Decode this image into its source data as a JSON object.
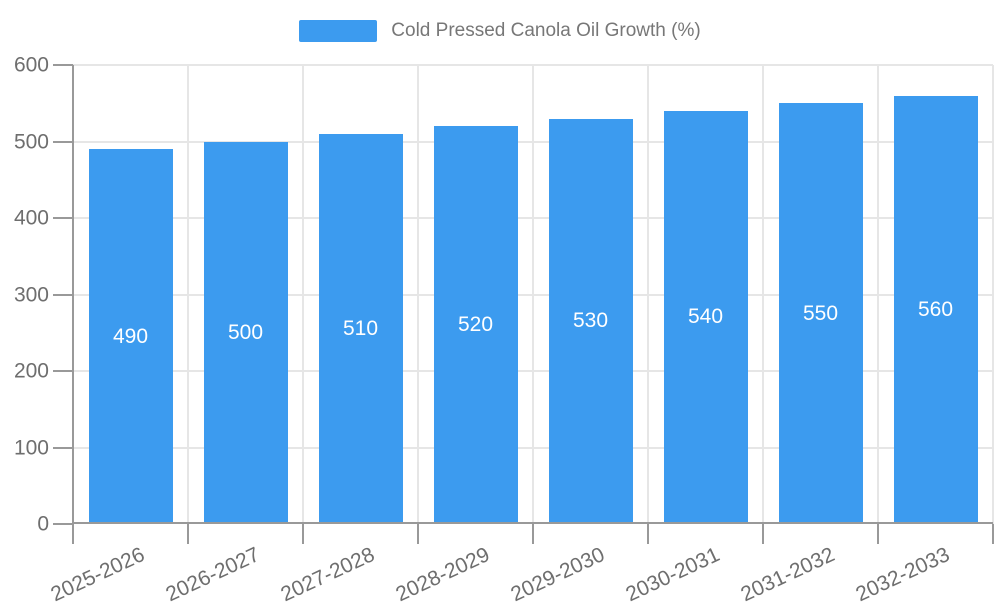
{
  "legend": {
    "label": "Cold Pressed Canola Oil Growth (%)"
  },
  "chart_data": {
    "type": "bar",
    "title": "",
    "xlabel": "",
    "ylabel": "",
    "categories": [
      "2025-2026",
      "2026-2027",
      "2027-2028",
      "2028-2029",
      "2029-2030",
      "2030-2031",
      "2031-2032",
      "2032-2033"
    ],
    "series": [
      {
        "name": "Cold Pressed Canola Oil Growth (%)",
        "values": [
          490,
          500,
          510,
          520,
          530,
          540,
          550,
          560
        ]
      }
    ],
    "bar_labels": [
      "490",
      "500",
      "510",
      "520",
      "530",
      "540",
      "550",
      "560"
    ],
    "ylim": [
      0,
      600
    ],
    "yticks": [
      0,
      100,
      200,
      300,
      400,
      500,
      600
    ],
    "grid": true,
    "legend_position": "top",
    "bar_label_position": "center"
  },
  "colors": {
    "bar": "#3c9bef",
    "axis_line": "#999999",
    "grid_line": "#e6e6e6",
    "tick_label_text": "#6e6e6e",
    "legend_text": "#777777",
    "bar_label_text": "#ffffff",
    "background": "#ffffff"
  }
}
